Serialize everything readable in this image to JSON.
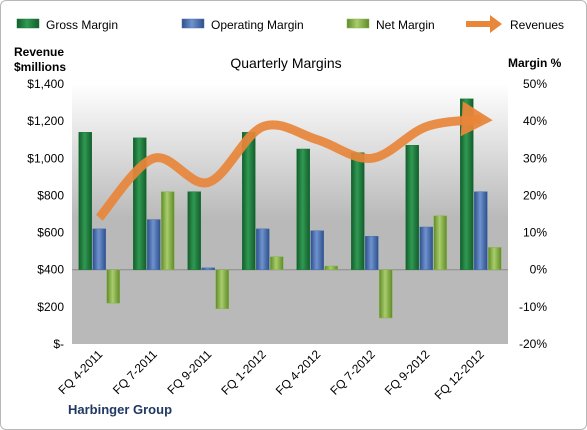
{
  "chart_data": {
    "type": "bar",
    "title": "Quarterly Margins",
    "y_left_label_line1": "Revenue",
    "y_left_label_line2": "$millions",
    "y_right_label": "Margin %",
    "categories": [
      "FQ 4-2011",
      "FQ 7-2011",
      "FQ 9-2011",
      "FQ 1-2012",
      "FQ 4-2012",
      "FQ 7-2012",
      "FQ 9-2012",
      "FQ 12-2012"
    ],
    "ylim_left": [
      0,
      1400
    ],
    "ylim_right": [
      -20,
      50
    ],
    "y_left_ticks": [
      "$-",
      "$200",
      "$400",
      "$600",
      "$800",
      "$1,000",
      "$1,200",
      "$1,400"
    ],
    "y_right_ticks": [
      "-20%",
      "-10%",
      "0%",
      "10%",
      "20%",
      "30%",
      "40%",
      "50%"
    ],
    "series": [
      {
        "name": "Gross Margin",
        "axis": "right",
        "type": "bar",
        "color": "#1e7a3c",
        "values": [
          37,
          35.5,
          21,
          37,
          32.5,
          31.5,
          33.5,
          46
        ]
      },
      {
        "name": "Operating Margin",
        "axis": "right",
        "type": "bar",
        "color": "#4a6fb0",
        "values": [
          11,
          13.5,
          0.5,
          11,
          10.5,
          9,
          11.5,
          21
        ]
      },
      {
        "name": "Net Margin",
        "axis": "right",
        "type": "bar",
        "color": "#8ab34a",
        "values": [
          -9,
          21,
          -10.5,
          3.5,
          1,
          -13,
          14.5,
          6
        ]
      },
      {
        "name": "Revenues",
        "axis": "left",
        "type": "line",
        "color": "#e8863a",
        "values": [
          680,
          1000,
          870,
          1170,
          1100,
          1000,
          1170,
          1210
        ]
      }
    ],
    "source": "Harbinger Group",
    "grid": false,
    "legend": "top"
  }
}
